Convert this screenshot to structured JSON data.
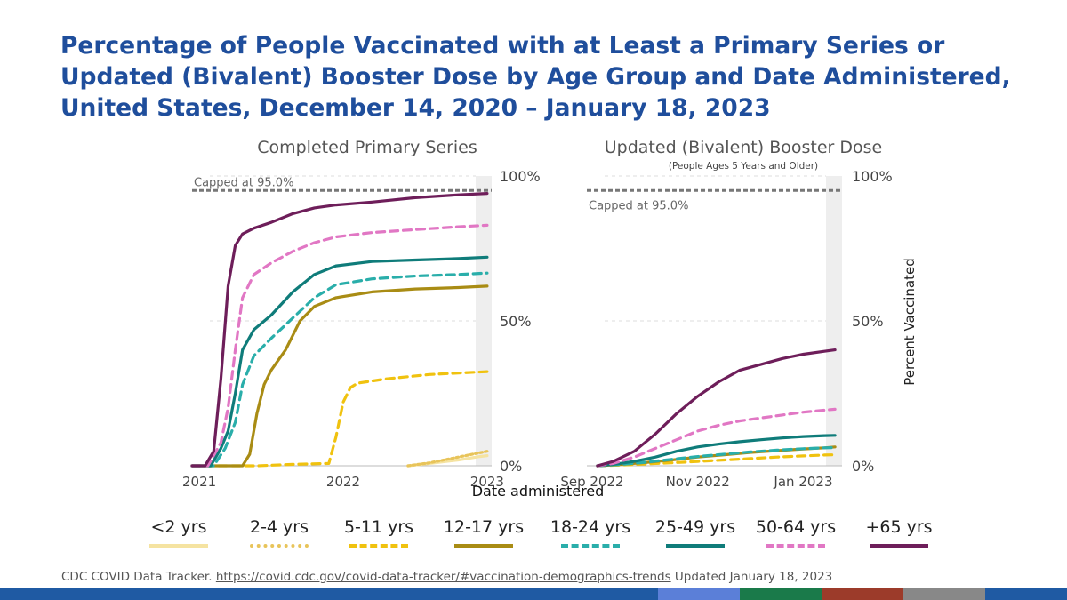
{
  "title": "Percentage of People Vaccinated with at Least a Primary Series or Updated (Bivalent) Booster Dose by Age Group and Date Administered, United States, December 14, 2020 – January 18, 2023",
  "colors": {
    "title": "#1f4e9c",
    "lt2": "#f5e3a1",
    "2to4": "#e8c45a",
    "5to11": "#f0c20f",
    "12to17": "#a98c14",
    "18to24": "#2aaeaa",
    "25to49": "#0f7c7a",
    "50to64": "#e177c4",
    "65plus": "#6e1e5a",
    "cap": "#777777",
    "band": "#1f5aa3"
  },
  "chart_data": [
    {
      "type": "line",
      "title": "Completed Primary Series",
      "subtitle": "",
      "xlabel": "Date administered",
      "ylabel": "",
      "xlim": [
        2020.95,
        2023.05
      ],
      "ylim": [
        0,
        100
      ],
      "xticks": [
        2021,
        2022,
        2023
      ],
      "xtick_labels": [
        "2021",
        "2022",
        "2023"
      ],
      "yticks": [
        0,
        50,
        100
      ],
      "ytick_labels": [
        "0%",
        "50%",
        "100%"
      ],
      "cap": {
        "value": 95,
        "label": "Capped at 95.0%"
      },
      "series": [
        {
          "key": "65plus",
          "name": "+65 yrs",
          "dash": "solid",
          "x": [
            2020.95,
            2021.04,
            2021.1,
            2021.15,
            2021.2,
            2021.25,
            2021.3,
            2021.38,
            2021.5,
            2021.65,
            2021.8,
            2021.95,
            2022.2,
            2022.5,
            2022.8,
            2023.0
          ],
          "y": [
            0,
            0,
            5,
            30,
            62,
            76,
            80,
            82,
            84,
            87,
            89,
            90,
            91,
            92.5,
            93.5,
            94
          ]
        },
        {
          "key": "50to64",
          "name": "50-64 yrs",
          "dash": "dashed",
          "x": [
            2020.95,
            2021.06,
            2021.15,
            2021.2,
            2021.25,
            2021.3,
            2021.38,
            2021.5,
            2021.65,
            2021.8,
            2021.95,
            2022.2,
            2022.5,
            2022.8,
            2023.0
          ],
          "y": [
            0,
            0,
            8,
            20,
            40,
            58,
            66,
            70,
            74,
            77,
            79,
            80.5,
            81.5,
            82.5,
            83
          ]
        },
        {
          "key": "25to49",
          "name": "25-49 yrs",
          "dash": "solid",
          "x": [
            2020.95,
            2021.08,
            2021.15,
            2021.2,
            2021.25,
            2021.3,
            2021.38,
            2021.5,
            2021.65,
            2021.8,
            2021.95,
            2022.2,
            2022.5,
            2022.8,
            2023.0
          ],
          "y": [
            0,
            0,
            6,
            12,
            25,
            40,
            47,
            52,
            60,
            66,
            69,
            70.5,
            71,
            71.5,
            72
          ]
        },
        {
          "key": "18to24",
          "name": "18-24 yrs",
          "dash": "dashed",
          "x": [
            2020.95,
            2021.1,
            2021.18,
            2021.25,
            2021.3,
            2021.38,
            2021.5,
            2021.65,
            2021.8,
            2021.95,
            2022.2,
            2022.5,
            2022.8,
            2023.0
          ],
          "y": [
            0,
            0,
            6,
            15,
            28,
            38,
            44,
            51,
            58,
            62.5,
            64.5,
            65.5,
            66,
            66.5
          ]
        },
        {
          "key": "12to17",
          "name": "12-17 yrs",
          "dash": "solid",
          "x": [
            2020.95,
            2021.3,
            2021.35,
            2021.4,
            2021.45,
            2021.5,
            2021.6,
            2021.7,
            2021.8,
            2021.95,
            2022.2,
            2022.5,
            2022.8,
            2023.0
          ],
          "y": [
            0,
            0,
            4,
            18,
            28,
            33,
            40,
            50,
            55,
            58,
            60,
            61,
            61.5,
            62
          ]
        },
        {
          "key": "5to11",
          "name": "5-11 yrs",
          "dash": "dashed",
          "x": [
            2020.95,
            2021.4,
            2021.65,
            2021.9,
            2021.95,
            2022.0,
            2022.05,
            2022.1,
            2022.3,
            2022.6,
            2022.8,
            2023.0
          ],
          "y": [
            0,
            0,
            0.5,
            0.8,
            10,
            22,
            27,
            28.5,
            30,
            31.5,
            32,
            32.5
          ]
        },
        {
          "key": "2to4",
          "name": "2-4 yrs",
          "dash": "dotted",
          "x": [
            2022.45,
            2022.6,
            2022.8,
            2022.95,
            2023.0
          ],
          "y": [
            0,
            1,
            3,
            4.5,
            5
          ]
        },
        {
          "key": "lt2",
          "name": "<2 yrs",
          "dash": "solid",
          "x": [
            2022.45,
            2022.6,
            2022.8,
            2022.95,
            2023.0
          ],
          "y": [
            0,
            0.8,
            2,
            3.2,
            3.5
          ]
        }
      ]
    },
    {
      "type": "line",
      "title": "Updated (Bivalent) Booster Dose",
      "subtitle": "(People Ages 5 Years and Older)",
      "xlabel": "",
      "ylabel": "Percent Vaccinated",
      "xlim": [
        -0.1,
        4.75
      ],
      "ylim": [
        0,
        100
      ],
      "xticks": [
        0,
        2,
        4
      ],
      "xtick_labels": [
        "Sep 2022",
        "Nov 2022",
        "Jan 2023"
      ],
      "yticks": [
        0,
        50,
        100
      ],
      "ytick_labels": [
        "0%",
        "50%",
        "100%"
      ],
      "cap": {
        "value": 95,
        "label": "Capped at 95.0%"
      },
      "series": [
        {
          "key": "65plus",
          "name": "+65 yrs",
          "dash": "solid",
          "x": [
            0.1,
            0.4,
            0.8,
            1.2,
            1.6,
            2.0,
            2.4,
            2.8,
            3.2,
            3.6,
            4.0,
            4.4,
            4.6
          ],
          "y": [
            0,
            1.5,
            5,
            11,
            18,
            24,
            29,
            33,
            35,
            37,
            38.5,
            39.5,
            40
          ]
        },
        {
          "key": "50to64",
          "name": "50-64 yrs",
          "dash": "dashed",
          "x": [
            0.1,
            0.4,
            0.8,
            1.2,
            1.6,
            2.0,
            2.4,
            2.8,
            3.2,
            3.6,
            4.0,
            4.4,
            4.6
          ],
          "y": [
            0,
            0.8,
            3,
            6,
            9,
            12,
            14,
            15.5,
            16.5,
            17.5,
            18.5,
            19.2,
            19.5
          ]
        },
        {
          "key": "25to49",
          "name": "25-49 yrs",
          "dash": "solid",
          "x": [
            0.1,
            0.4,
            0.8,
            1.2,
            1.6,
            2.0,
            2.4,
            2.8,
            3.2,
            3.6,
            4.0,
            4.4,
            4.6
          ],
          "y": [
            0,
            0.5,
            1.5,
            3,
            5,
            6.5,
            7.5,
            8.3,
            9,
            9.6,
            10.1,
            10.4,
            10.5
          ]
        },
        {
          "key": "18to24",
          "name": "18-24 yrs",
          "dash": "dashed",
          "x": [
            0.1,
            0.5,
            1.0,
            1.5,
            2.0,
            2.5,
            3.0,
            3.5,
            4.0,
            4.4,
            4.6
          ],
          "y": [
            0,
            0.4,
            1.2,
            2.2,
            3.2,
            4,
            4.8,
            5.4,
            5.9,
            6.2,
            6.3
          ]
        },
        {
          "key": "12to17",
          "name": "12-17 yrs",
          "dash": "solid",
          "x": [
            0.1,
            0.5,
            1.0,
            1.5,
            2.0,
            2.5,
            3.0,
            3.5,
            4.0,
            4.4,
            4.6
          ],
          "y": [
            0,
            0.4,
            1.1,
            2,
            3,
            3.8,
            4.6,
            5.2,
            5.8,
            6.2,
            6.5
          ]
        },
        {
          "key": "5to11",
          "name": "5-11 yrs",
          "dash": "dashed",
          "x": [
            0.1,
            0.5,
            1.0,
            1.5,
            2.0,
            2.5,
            3.0,
            3.5,
            4.0,
            4.4,
            4.6
          ],
          "y": [
            0,
            0.2,
            0.6,
            1,
            1.5,
            2,
            2.5,
            3,
            3.4,
            3.7,
            3.8
          ]
        }
      ]
    }
  ],
  "legend": [
    {
      "key": "lt2",
      "label": "<2 yrs",
      "dash": "solid"
    },
    {
      "key": "2to4",
      "label": "2-4 yrs",
      "dash": "dotted"
    },
    {
      "key": "5to11",
      "label": "5-11 yrs",
      "dash": "dashed"
    },
    {
      "key": "12to17",
      "label": "12-17 yrs",
      "dash": "solid"
    },
    {
      "key": "18to24",
      "label": "18-24 yrs",
      "dash": "dashed"
    },
    {
      "key": "25to49",
      "label": "25-49 yrs",
      "dash": "solid"
    },
    {
      "key": "50to64",
      "label": "50-64 yrs",
      "dash": "dashed"
    },
    {
      "key": "65plus",
      "label": "+65 yrs",
      "dash": "solid"
    }
  ],
  "source": {
    "prefix": "CDC COVID Data Tracker. ",
    "url": "https://covid.cdc.gov/covid-data-tracker/#vaccination-demographics-trends",
    "suffix": " Updated January 18, 2023"
  },
  "band_colors": [
    "#5b7fd8",
    "#1a7a4a",
    "#9c3b2a",
    "#888888"
  ]
}
